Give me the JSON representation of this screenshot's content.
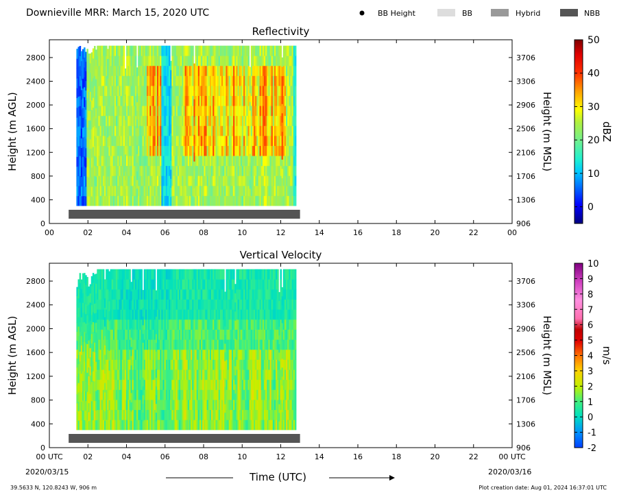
{
  "header": {
    "title": "Downieville MRR:  March 15, 2020 UTC",
    "legend": [
      {
        "label": "BB Height",
        "kind": "dot",
        "color": "#000000"
      },
      {
        "label": "BB",
        "kind": "box",
        "color": "#dddddd"
      },
      {
        "label": "Hybrid",
        "kind": "box",
        "color": "#999999"
      },
      {
        "label": "NBB",
        "kind": "box",
        "color": "#555555"
      }
    ]
  },
  "footer": {
    "location": "39.5633 N, 120.8243 W, 906 m",
    "creation_date": "Plot creation date: Aug 01, 2024 16:37:01 UTC",
    "start_date": "2020/03/15",
    "end_date": "2020/03/16"
  },
  "chart_data": [
    {
      "type": "heatmap",
      "title": "Reflectivity",
      "xlabel": "",
      "ylabel": "Height (m AGL)",
      "ylabel_right": "Height (m MSL)",
      "x_ticks": [
        "00",
        "02",
        "04",
        "06",
        "08",
        "10",
        "12",
        "14",
        "16",
        "18",
        "20",
        "22",
        "00"
      ],
      "y_ticks": [
        "0",
        "400",
        "800",
        "1200",
        "1600",
        "2000",
        "2400",
        "2800"
      ],
      "y_ticks_right": [
        "906",
        "1306",
        "1706",
        "2106",
        "2506",
        "2906",
        "3306",
        "3706"
      ],
      "xlim": [
        0,
        24
      ],
      "ylim": [
        0,
        3100
      ],
      "data_extent": {
        "t_start": 1.4,
        "t_end": 12.8,
        "h_min": 300,
        "h_max": 3000
      },
      "bright_band_bar": {
        "category": "NBB",
        "t_start": 1.0,
        "t_end": 13.0
      },
      "colorbar": {
        "label": "dBZ",
        "min": -5,
        "max": 50,
        "ticks": [
          "50",
          "40",
          "30",
          "20",
          "10",
          "0"
        ]
      }
    },
    {
      "type": "heatmap",
      "title": "Vertical Velocity",
      "xlabel": "Time (UTC)",
      "ylabel": "Height (m AGL)",
      "ylabel_right": "Height (m MSL)",
      "x_ticks": [
        "00 UTC",
        "02",
        "04",
        "06",
        "08",
        "10",
        "12",
        "14",
        "16",
        "18",
        "20",
        "22",
        "00 UTC"
      ],
      "y_ticks": [
        "0",
        "400",
        "800",
        "1200",
        "1600",
        "2000",
        "2400",
        "2800"
      ],
      "y_ticks_right": [
        "906",
        "1306",
        "1706",
        "2106",
        "2506",
        "2906",
        "3306",
        "3706"
      ],
      "xlim": [
        0,
        24
      ],
      "ylim": [
        0,
        3100
      ],
      "data_extent": {
        "t_start": 1.4,
        "t_end": 12.8,
        "h_min": 300,
        "h_max": 3000
      },
      "bright_band_bar": {
        "category": "NBB",
        "t_start": 1.0,
        "t_end": 13.0
      },
      "colorbar": {
        "label": "m/s",
        "min": -2,
        "max": 10,
        "ticks": [
          "10",
          "9",
          "8",
          "7",
          "6",
          "5",
          "4",
          "3",
          "2",
          "1",
          "0",
          "-1",
          "-2"
        ]
      }
    }
  ]
}
